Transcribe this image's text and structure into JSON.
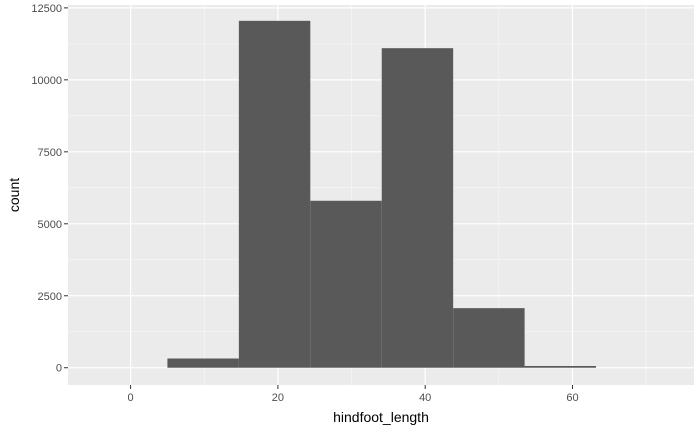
{
  "chart_data": {
    "type": "bar",
    "subtype": "histogram",
    "xlabel": "hindfoot_length",
    "ylabel": "count",
    "xlim": [
      -8.5,
      76.5
    ],
    "ylim": [
      -600,
      12600
    ],
    "x_ticks": [
      0,
      20,
      40,
      60
    ],
    "y_ticks": [
      0,
      2500,
      5000,
      7500,
      10000,
      12500
    ],
    "x_tick_labels": [
      "0",
      "20",
      "40",
      "60"
    ],
    "y_tick_labels": [
      "0",
      "2500",
      "5000",
      "7500",
      "10000",
      "12500"
    ],
    "bins": [
      {
        "x0": 5,
        "x1": 14.7,
        "count": 320
      },
      {
        "x0": 14.7,
        "x1": 24.4,
        "count": 12050
      },
      {
        "x0": 24.4,
        "x1": 34.1,
        "count": 5800
      },
      {
        "x0": 34.1,
        "x1": 43.8,
        "count": 11100
      },
      {
        "x0": 43.8,
        "x1": 53.5,
        "count": 2070
      },
      {
        "x0": 53.5,
        "x1": 63.2,
        "count": 60
      }
    ],
    "grid": true,
    "colors": {
      "panel": "#ebebeb",
      "grid_major": "#ffffff",
      "bar": "#595959",
      "tick_text": "#4d4d4d",
      "title_text": "#000000"
    }
  }
}
